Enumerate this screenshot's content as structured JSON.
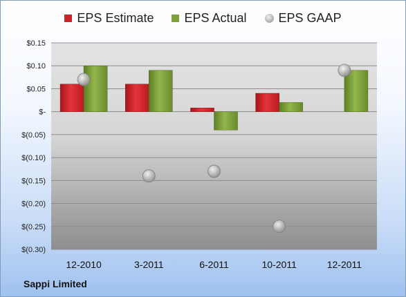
{
  "chart_data": {
    "type": "bar",
    "title": "",
    "xlabel": "",
    "ylabel": "",
    "categories": [
      "12-2010",
      "3-2011",
      "6-2011",
      "10-2011",
      "12-2011"
    ],
    "series": [
      {
        "name": "EPS Estimate",
        "kind": "bar",
        "color": "#cc2229",
        "values": [
          0.06,
          0.06,
          0.008,
          0.04,
          null
        ]
      },
      {
        "name": "EPS Actual",
        "kind": "bar",
        "color": "#7ea03a",
        "values": [
          0.1,
          0.09,
          -0.04,
          0.02,
          0.09
        ]
      },
      {
        "name": "EPS GAAP",
        "kind": "marker",
        "color": "#a6a6a6",
        "values": [
          0.07,
          -0.14,
          -0.13,
          -0.25,
          0.09
        ]
      }
    ],
    "ylim": [
      -0.3,
      0.15
    ],
    "yticks": [
      0.15,
      0.1,
      0.05,
      0.0,
      -0.05,
      -0.1,
      -0.15,
      -0.2,
      -0.25,
      -0.3
    ],
    "ytick_labels": [
      "$0.15",
      "$0.10",
      "$0.05",
      "$-",
      "$(0.05)",
      "$(0.10)",
      "$(0.15)",
      "$(0.20)",
      "$(0.25)",
      "$(0.30)"
    ],
    "grid": true,
    "legend_position": "top"
  },
  "legend": {
    "estimate": "EPS Estimate",
    "actual": "EPS Actual",
    "gaap": "EPS GAAP"
  },
  "company": "Sappi Limited"
}
